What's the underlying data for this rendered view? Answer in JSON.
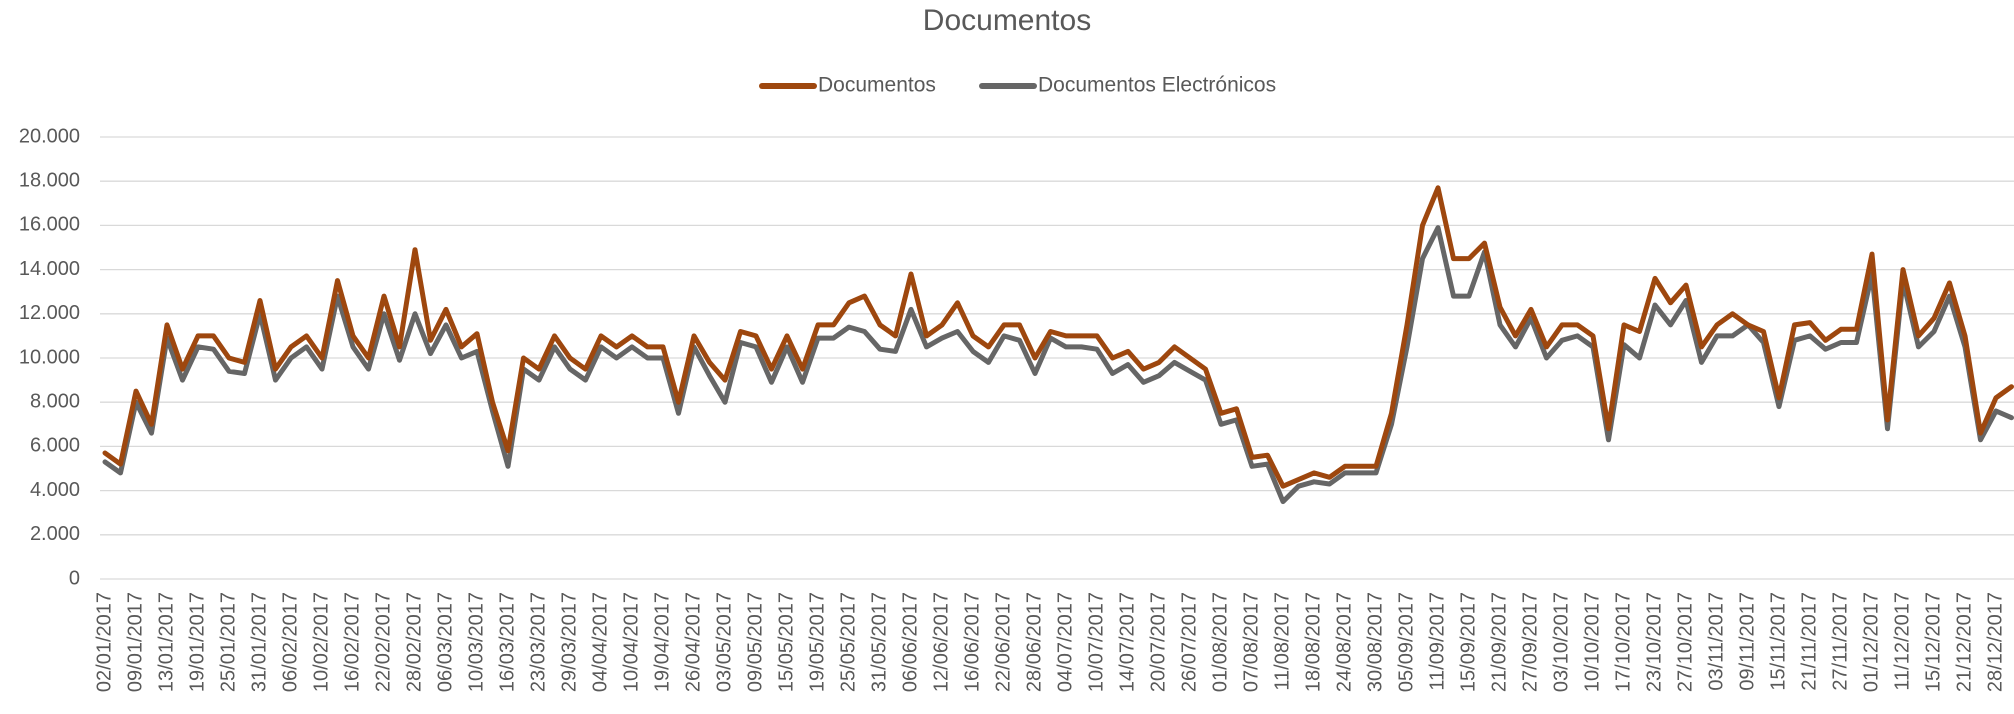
{
  "chart_data": {
    "type": "line",
    "title": "Documentos",
    "categories": [
      "02/01/2017",
      null,
      "09/01/2017",
      null,
      "13/01/2017",
      null,
      "19/01/2017",
      null,
      "25/01/2017",
      null,
      "31/01/2017",
      null,
      "06/02/2017",
      null,
      "10/02/2017",
      null,
      "16/02/2017",
      null,
      "22/02/2017",
      null,
      "28/02/2017",
      null,
      "06/03/2017",
      null,
      "10/03/2017",
      null,
      "16/03/2017",
      null,
      "23/03/2017",
      null,
      "29/03/2017",
      null,
      "04/04/2017",
      null,
      "10/04/2017",
      null,
      "19/04/2017",
      null,
      "26/04/2017",
      null,
      "03/05/2017",
      null,
      "09/05/2017",
      null,
      "15/05/2017",
      null,
      "19/05/2017",
      null,
      "25/05/2017",
      null,
      "31/05/2017",
      null,
      "06/06/2017",
      null,
      "12/06/2017",
      null,
      "16/06/2017",
      null,
      "22/06/2017",
      null,
      "28/06/2017",
      null,
      "04/07/2017",
      null,
      "10/07/2017",
      null,
      "14/07/2017",
      null,
      "20/07/2017",
      null,
      "26/07/2017",
      null,
      "01/08/2017",
      null,
      "07/08/2017",
      null,
      "11/08/2017",
      null,
      "18/08/2017",
      null,
      "24/08/2017",
      null,
      "30/08/2017",
      null,
      "05/09/2017",
      null,
      "11/09/2017",
      null,
      "15/09/2017",
      null,
      "21/09/2017",
      null,
      "27/09/2017",
      null,
      "03/10/2017",
      null,
      "10/10/2017",
      null,
      "17/10/2017",
      null,
      "23/10/2017",
      null,
      "27/10/2017",
      null,
      "03/11/2017",
      null,
      "09/11/2017",
      null,
      "15/11/2017",
      null,
      "21/11/2017",
      null,
      "27/11/2017",
      null,
      "01/12/2017",
      null,
      "11/12/2017",
      null,
      "15/12/2017",
      null,
      "21/12/2017",
      null,
      "28/12/2017",
      null
    ],
    "series": [
      {
        "name": "Documentos",
        "color": "#9e470e",
        "values": [
          5700,
          5200,
          8500,
          7000,
          11500,
          9500,
          11000,
          11000,
          10000,
          9800,
          12600,
          9500,
          10500,
          11000,
          10000,
          13500,
          11000,
          10000,
          12800,
          10500,
          14900,
          10800,
          12200,
          10500,
          11100,
          8000,
          5800,
          10000,
          9500,
          11000,
          10000,
          9500,
          11000,
          10500,
          11000,
          10500,
          10500,
          8000,
          11000,
          9800,
          9000,
          11200,
          11000,
          9500,
          11000,
          9500,
          11500,
          11500,
          12500,
          12800,
          11500,
          11000,
          13800,
          11000,
          11500,
          12500,
          11000,
          10500,
          11500,
          11500,
          10000,
          11200,
          11000,
          11000,
          11000,
          10000,
          10300,
          9500,
          9800,
          10500,
          10000,
          9500,
          7500,
          7700,
          5500,
          5600,
          4200,
          4500,
          4800,
          4600,
          5100,
          5100,
          5100,
          7500,
          11500,
          16000,
          17700,
          14500,
          14500,
          15200,
          12300,
          11000,
          12200,
          10500,
          11500,
          11500,
          11000,
          6800,
          11500,
          11200,
          13600,
          12500,
          13300,
          10500,
          11500,
          12000,
          11500,
          11200,
          8200,
          11500,
          11600,
          10800,
          11300,
          11300,
          14700,
          7200,
          14000,
          11000,
          11800,
          13400,
          11000,
          6600,
          8200,
          8700
        ]
      },
      {
        "name": "Documentos Electrónicos",
        "color": "#666666",
        "values": [
          5300,
          4800,
          8000,
          6600,
          10900,
          9000,
          10500,
          10400,
          9400,
          9300,
          12000,
          9000,
          10000,
          10500,
          9500,
          12800,
          10500,
          9500,
          12000,
          9900,
          12000,
          10200,
          11500,
          10000,
          10300,
          7600,
          5100,
          9500,
          9000,
          10500,
          9500,
          9000,
          10500,
          10000,
          10500,
          10000,
          10000,
          7500,
          10500,
          9200,
          8000,
          10700,
          10500,
          8900,
          10500,
          8900,
          10900,
          10900,
          11400,
          11200,
          10400,
          10300,
          12200,
          10500,
          10900,
          11200,
          10300,
          9800,
          11000,
          10800,
          9300,
          10900,
          10500,
          10500,
          10400,
          9300,
          9700,
          8900,
          9200,
          9800,
          9400,
          9000,
          7000,
          7200,
          5100,
          5200,
          3500,
          4200,
          4400,
          4300,
          4800,
          4800,
          4800,
          7000,
          10500,
          14500,
          15900,
          12800,
          12800,
          14800,
          11500,
          10500,
          11800,
          10000,
          10800,
          11000,
          10500,
          6300,
          10600,
          10000,
          12400,
          11500,
          12600,
          9800,
          11000,
          11000,
          11500,
          10700,
          7800,
          10800,
          11000,
          10400,
          10700,
          10700,
          13800,
          6800,
          13500,
          10500,
          11200,
          12800,
          10500,
          6300,
          7600,
          7300
        ]
      }
    ],
    "ylim": [
      0,
      20000
    ],
    "yticks": [
      0,
      {
        "value": 2000,
        "label": "2.000"
      },
      {
        "value": 4000,
        "label": "4.000"
      },
      {
        "value": 6000,
        "label": "6.000"
      },
      {
        "value": 8000,
        "label": "8.000"
      },
      {
        "value": 10000,
        "label": "10.000"
      },
      {
        "value": 12000,
        "label": "12.000"
      },
      {
        "value": 14000,
        "label": "14.000"
      },
      {
        "value": 16000,
        "label": "16.000"
      },
      {
        "value": 18000,
        "label": "18.000"
      },
      {
        "value": 20000,
        "label": "20.000"
      }
    ],
    "grid": true,
    "legend": "top"
  }
}
